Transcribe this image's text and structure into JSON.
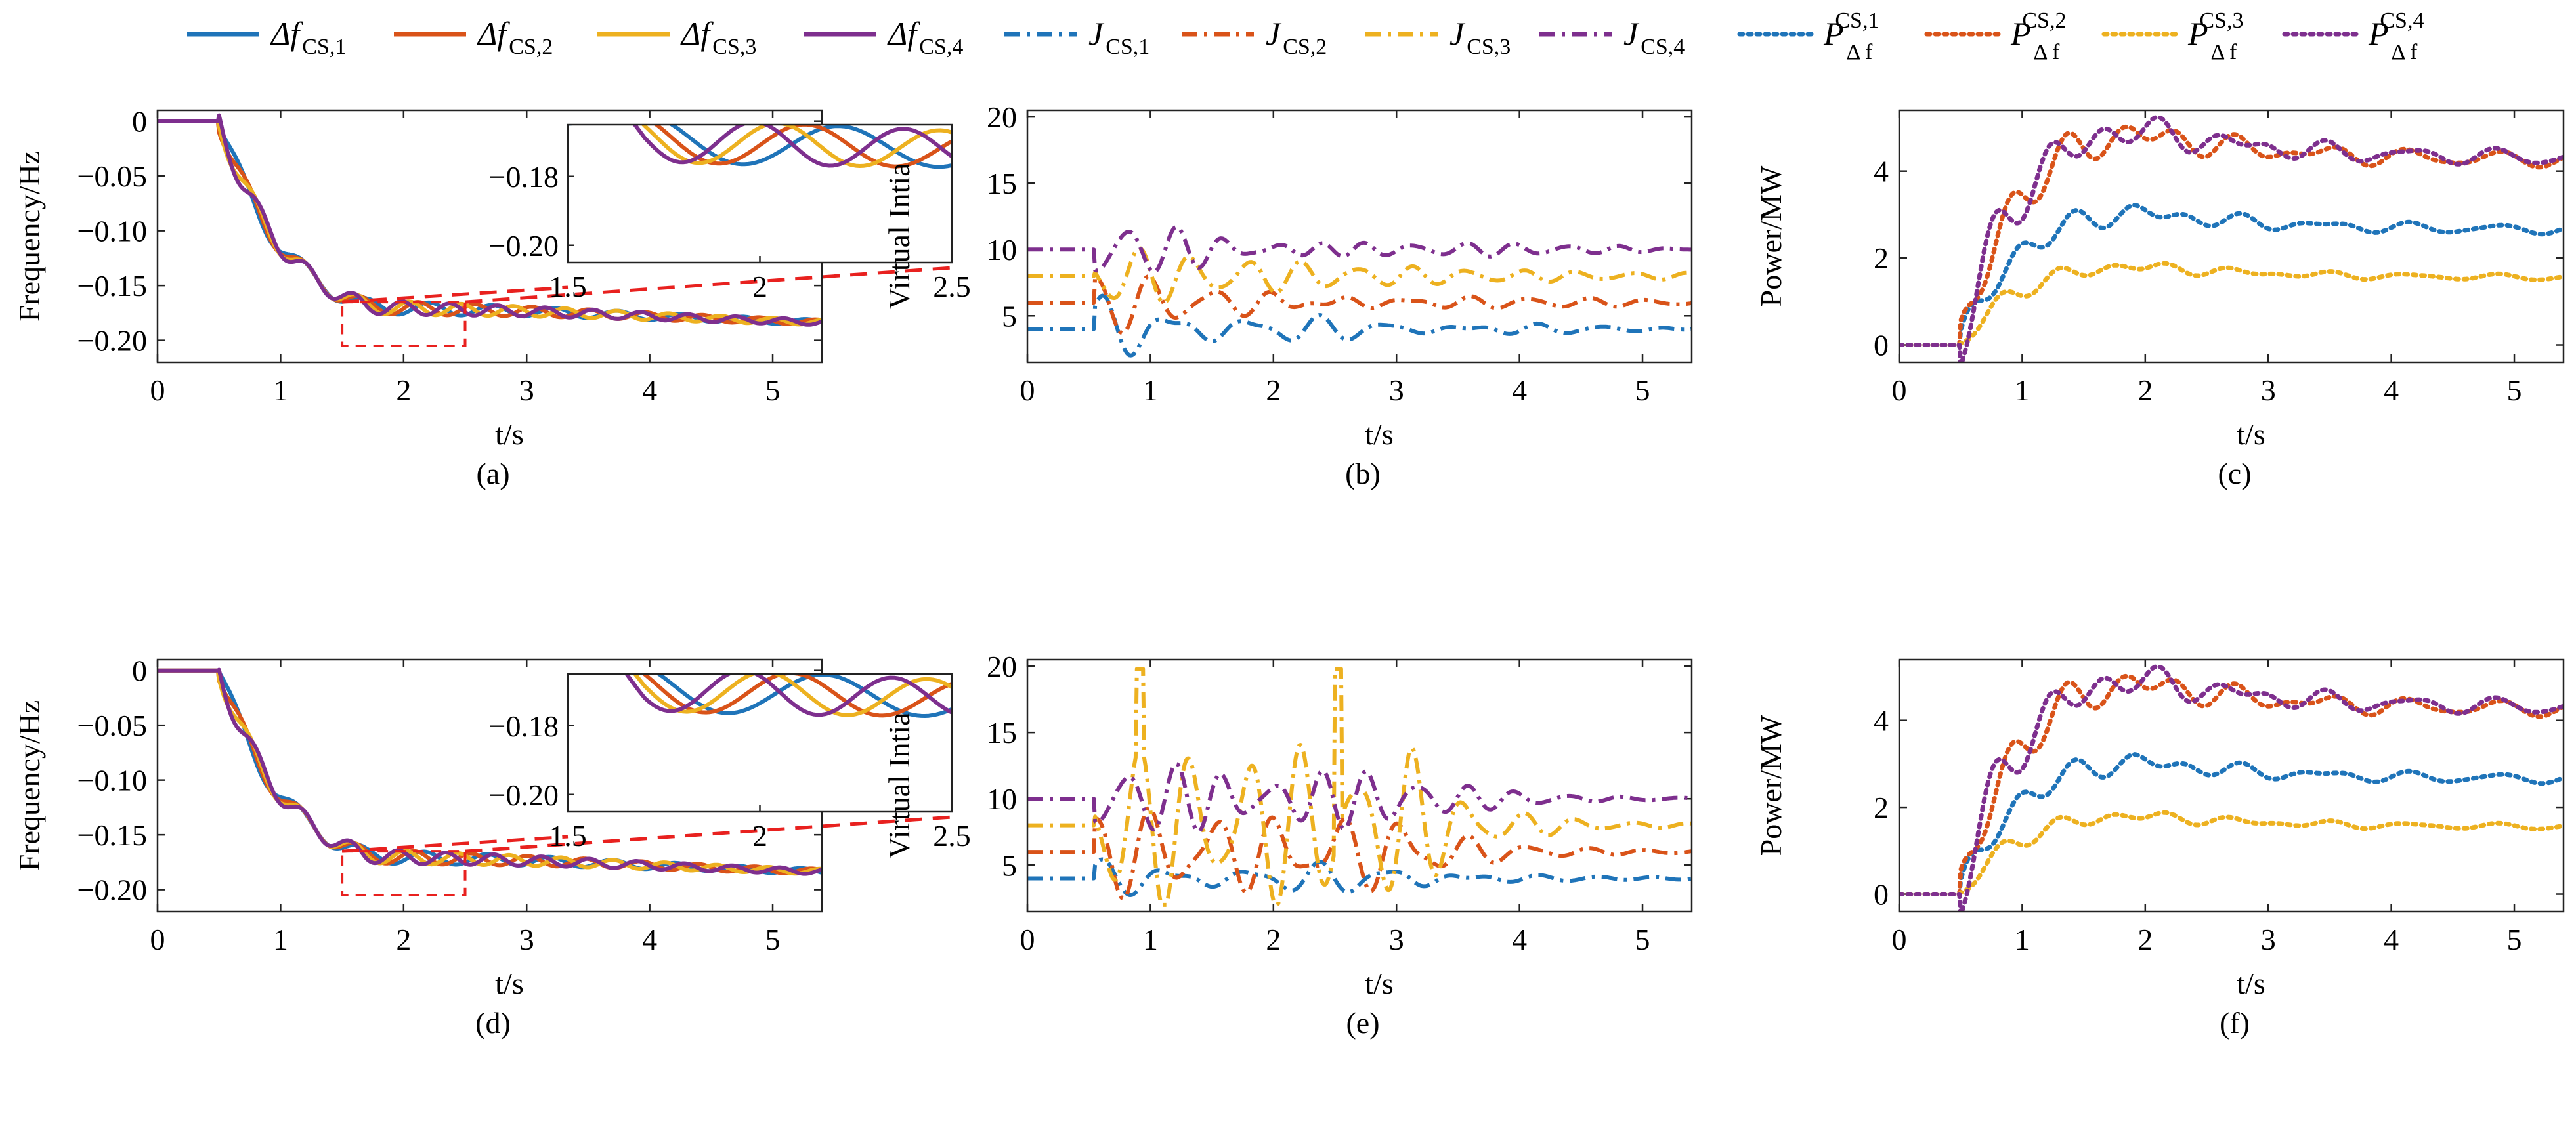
{
  "legend": [
    {
      "id": "df1",
      "main": "Δf",
      "sub": "CS,1",
      "sup": "",
      "color": "#1f74b9",
      "style": "solid"
    },
    {
      "id": "df2",
      "main": "Δf",
      "sub": "CS,2",
      "sup": "",
      "color": "#d95319",
      "style": "solid"
    },
    {
      "id": "df3",
      "main": "Δf",
      "sub": "CS,3",
      "sup": "",
      "color": "#edb120",
      "style": "solid"
    },
    {
      "id": "df4",
      "main": "Δf",
      "sub": "CS,4",
      "sup": "",
      "color": "#7e2f8e",
      "style": "solid"
    },
    {
      "id": "j1",
      "main": "J",
      "sub": "CS,1",
      "sup": "",
      "color": "#1f74b9",
      "style": "dashdot"
    },
    {
      "id": "j2",
      "main": "J",
      "sub": "CS,2",
      "sup": "",
      "color": "#d95319",
      "style": "dashdot"
    },
    {
      "id": "j3",
      "main": "J",
      "sub": "CS,3",
      "sup": "",
      "color": "#edb120",
      "style": "dashdot"
    },
    {
      "id": "j4",
      "main": "J",
      "sub": "CS,4",
      "sup": "",
      "color": "#7e2f8e",
      "style": "dashdot"
    },
    {
      "id": "p1",
      "main": "P",
      "sub": "Δ f",
      "sup": "CS,1",
      "color": "#1f74b9",
      "style": "dotted"
    },
    {
      "id": "p2",
      "main": "P",
      "sub": "Δ f",
      "sup": "CS,2",
      "color": "#d95319",
      "style": "dotted"
    },
    {
      "id": "p3",
      "main": "P",
      "sub": "Δ f",
      "sup": "CS,3",
      "color": "#edb120",
      "style": "dotted"
    },
    {
      "id": "p4",
      "main": "P",
      "sub": "Δ f",
      "sup": "CS,4",
      "color": "#7e2f8e",
      "style": "dotted"
    }
  ],
  "chart_data": [
    {
      "id": "a",
      "caption": "(a)",
      "type": "line",
      "xlabel": "t/s",
      "ylabel": "Frequency/Hz",
      "xlim": [
        0,
        5.4
      ],
      "ylim": [
        -0.22,
        0.01
      ],
      "xticks": [
        0,
        1,
        2,
        3,
        4,
        5
      ],
      "xtick_labels": [
        "0",
        "1",
        "2",
        "3",
        "4",
        "5"
      ],
      "yticks": [
        0,
        -0.05,
        -0.1,
        -0.15,
        -0.2
      ],
      "ytick_labels": [
        "0",
        "−0.05",
        "−0.10",
        "−0.15",
        "−0.20"
      ],
      "variant": "freq",
      "seed": 1,
      "inset": {
        "xlim": [
          1.5,
          2.5
        ],
        "ylim": [
          -0.205,
          -0.165
        ],
        "xticks": [
          1.5,
          2,
          2.5
        ],
        "xtick_labels": [
          "1.5",
          "2",
          "2.5"
        ],
        "yticks": [
          -0.18,
          -0.2
        ],
        "ytick_labels": [
          "−0.18",
          "−0.20"
        ]
      }
    },
    {
      "id": "b",
      "caption": "(b)",
      "type": "line",
      "xlabel": "t/s",
      "ylabel": "Virtual Intia",
      "xlim": [
        0,
        5.4
      ],
      "ylim": [
        1.5,
        20.5
      ],
      "xticks": [
        0,
        1,
        2,
        3,
        4,
        5
      ],
      "xtick_labels": [
        "0",
        "1",
        "2",
        "3",
        "4",
        "5"
      ],
      "yticks": [
        5,
        10,
        15,
        20
      ],
      "ytick_labels": [
        "5",
        "10",
        "15",
        "20"
      ],
      "variant": "inertia",
      "seed": 2
    },
    {
      "id": "c",
      "caption": "(c)",
      "type": "line",
      "xlabel": "t/s",
      "ylabel": "Power/MW",
      "xlim": [
        0,
        5.4
      ],
      "ylim": [
        -0.4,
        5.4
      ],
      "xticks": [
        0,
        1,
        2,
        3,
        4,
        5
      ],
      "xtick_labels": [
        "0",
        "1",
        "2",
        "3",
        "4",
        "5"
      ],
      "yticks": [
        0,
        2,
        4
      ],
      "ytick_labels": [
        "0",
        "2",
        "4"
      ],
      "variant": "power",
      "seed": 3
    },
    {
      "id": "d",
      "caption": "(d)",
      "type": "line",
      "xlabel": "t/s",
      "ylabel": "Frequency/Hz",
      "xlim": [
        0,
        5.4
      ],
      "ylim": [
        -0.22,
        0.01
      ],
      "xticks": [
        0,
        1,
        2,
        3,
        4,
        5
      ],
      "xtick_labels": [
        "0",
        "1",
        "2",
        "3",
        "4",
        "5"
      ],
      "yticks": [
        0,
        -0.05,
        -0.1,
        -0.15,
        -0.2
      ],
      "ytick_labels": [
        "0",
        "−0.05",
        "−0.10",
        "−0.15",
        "−0.20"
      ],
      "variant": "freq",
      "seed": 4,
      "inset": {
        "xlim": [
          1.5,
          2.5
        ],
        "ylim": [
          -0.205,
          -0.165
        ],
        "xticks": [
          1.5,
          2,
          2.5
        ],
        "xtick_labels": [
          "1.5",
          "2",
          "2.5"
        ],
        "yticks": [
          -0.18,
          -0.2
        ],
        "ytick_labels": [
          "−0.18",
          "−0.20"
        ]
      }
    },
    {
      "id": "e",
      "caption": "(e)",
      "type": "line",
      "xlabel": "t/s",
      "ylabel": "Virtual Intia",
      "xlim": [
        0,
        5.4
      ],
      "ylim": [
        1.5,
        20.5
      ],
      "xticks": [
        0,
        1,
        2,
        3,
        4,
        5
      ],
      "xtick_labels": [
        "0",
        "1",
        "2",
        "3",
        "4",
        "5"
      ],
      "yticks": [
        5,
        10,
        15,
        20
      ],
      "ytick_labels": [
        "5",
        "10",
        "15",
        "20"
      ],
      "variant": "inertia2",
      "seed": 5
    },
    {
      "id": "f",
      "caption": "(f)",
      "type": "line",
      "xlabel": "t/s",
      "ylabel": "Power/MW",
      "xlim": [
        0,
        5.4
      ],
      "ylim": [
        -0.4,
        5.4
      ],
      "xticks": [
        0,
        1,
        2,
        3,
        4,
        5
      ],
      "xtick_labels": [
        "0",
        "1",
        "2",
        "3",
        "4",
        "5"
      ],
      "yticks": [
        0,
        2,
        4
      ],
      "ytick_labels": [
        "0",
        "2",
        "4"
      ],
      "variant": "power",
      "seed": 6
    }
  ]
}
